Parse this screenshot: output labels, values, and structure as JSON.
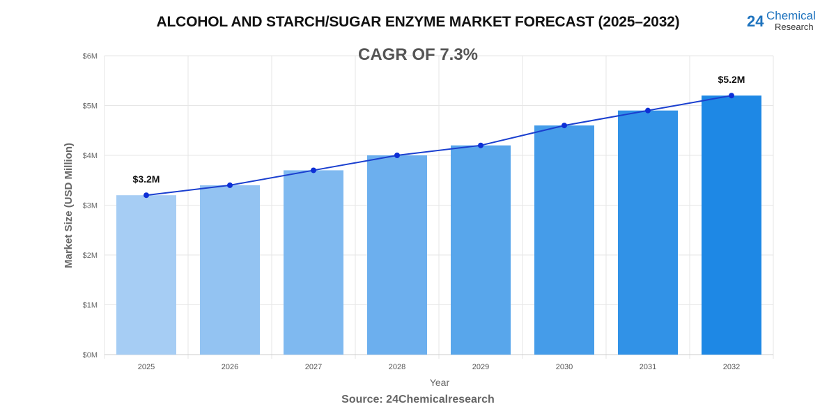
{
  "logo_text": "24Chemical Research",
  "source": "Source: 24Chemicalresearch",
  "chart_data": {
    "type": "bar",
    "title": "ALCOHOL AND STARCH/SUGAR ENZYME MARKET FORECAST (2025–2032)",
    "annotation": "CAGR OF 7.3%",
    "xlabel": "Year",
    "ylabel": "Market Size (USD Million)",
    "categories": [
      "2025",
      "2026",
      "2027",
      "2028",
      "2029",
      "2030",
      "2031",
      "2032"
    ],
    "values": [
      3.2,
      3.4,
      3.7,
      4.0,
      4.2,
      4.6,
      4.9,
      5.2
    ],
    "overlay_line": true,
    "data_labels": [
      {
        "index": 0,
        "text": "$3.2M"
      },
      {
        "index": 7,
        "text": "$5.2M"
      }
    ],
    "ylim": [
      0,
      6
    ],
    "yticks": [
      "$0M",
      "$1M",
      "$2M",
      "$3M",
      "$4M",
      "$5M",
      "$6M"
    ],
    "grid": true,
    "colors": {
      "bar_start": "#a6cdf4",
      "bar_end": "#1e88e5",
      "line": "#1a3fcf",
      "point": "#0d2fd6"
    }
  }
}
